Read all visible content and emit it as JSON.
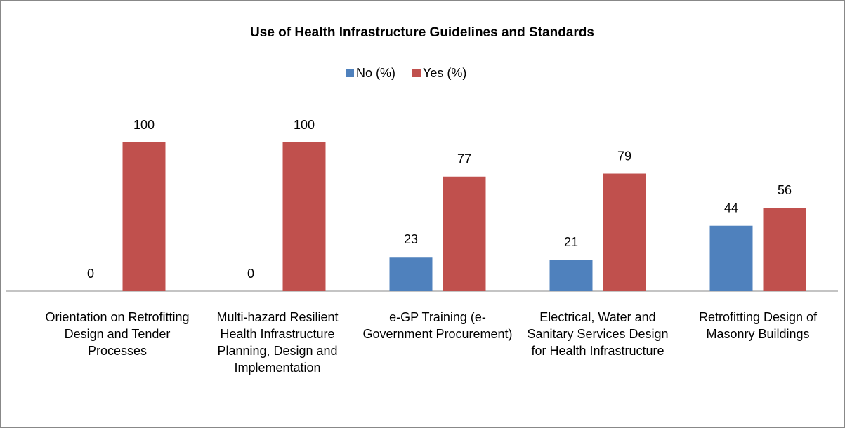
{
  "chart_data": {
    "type": "bar",
    "title": "Use of Health Infrastructure Guidelines and Standards",
    "categories": [
      "Orientation on Retrofitting Design and Tender Processes",
      "Multi-hazard Resilient Health Infrastructure Planning, Design and Implementation",
      "e-GP Training (e-Government Procurement)",
      "Electrical, Water and Sanitary Services Design for Health Infrastructure",
      "Retrofitting Design of Masonry Buildings"
    ],
    "series": [
      {
        "name": "No (%)",
        "color": "#4f81bd",
        "values": [
          0,
          0,
          23,
          21,
          44
        ]
      },
      {
        "name": "Yes (%)",
        "color": "#c0504d",
        "values": [
          100,
          100,
          77,
          79,
          56
        ]
      }
    ],
    "ylim": [
      0,
      100
    ],
    "legend": "top"
  }
}
